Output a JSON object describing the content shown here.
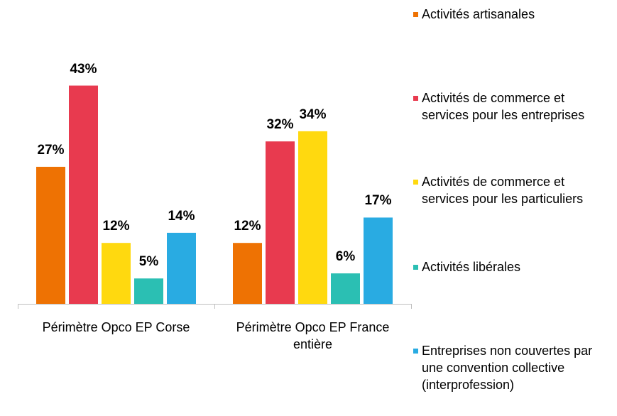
{
  "chart_data": {
    "type": "bar",
    "categories": [
      "Périmètre Opco EP Corse",
      "Périmètre Opco EP France entière"
    ],
    "series": [
      {
        "name": "Activités artisanales",
        "color": "#EE7203",
        "values": [
          27,
          12
        ],
        "value_labels": [
          "27%",
          "12%"
        ]
      },
      {
        "name": "Activités de commerce et services pour les entreprises",
        "color": "#E83A4F",
        "values": [
          43,
          32
        ],
        "value_labels": [
          "43%",
          "32%"
        ]
      },
      {
        "name": "Activités de commerce et services pour les particuliers",
        "color": "#FFD90F",
        "values": [
          12,
          34
        ],
        "value_labels": [
          "12%",
          "34%"
        ]
      },
      {
        "name": "Activités libérales",
        "color": "#2BBFB3",
        "values": [
          5,
          6
        ],
        "value_labels": [
          "5%",
          "6%"
        ]
      },
      {
        "name": "Entreprises non couvertes par une convention collective (interprofession)",
        "color": "#29ABE2",
        "values": [
          14,
          17
        ],
        "value_labels": [
          "14%",
          "17%"
        ]
      }
    ]
  }
}
